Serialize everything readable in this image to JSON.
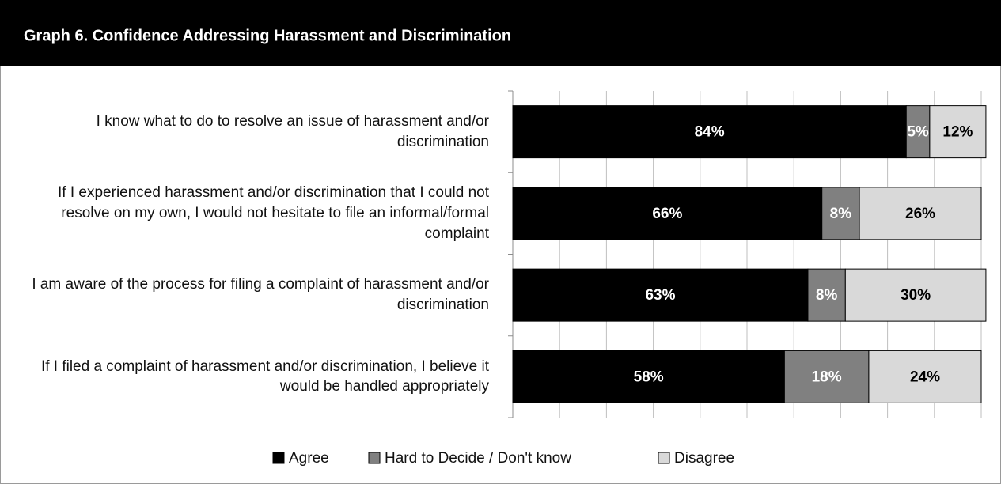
{
  "chart_data": {
    "type": "stacked-bar-horizontal",
    "title": "Graph 6. Confidence Addressing Harassment and Discrimination",
    "categories": [
      "I know what to do to resolve an issue of harassment and/or discrimination",
      "If I experienced harassment and/or discrimination that I could not resolve on my own, I would not hesitate to file an informal/formal complaint",
      "I am aware of the process for filing a complaint of harassment and/or discrimination",
      "If I filed a complaint of harassment and/or discrimination, I believe it would be handled appropriately"
    ],
    "series": [
      {
        "name": "Agree",
        "color": "#000000",
        "label_color": "#ffffff",
        "values": [
          84,
          66,
          63,
          58
        ],
        "value_labels": [
          "84%",
          "66%",
          "63%",
          "58%"
        ]
      },
      {
        "name": "Hard to Decide / Don't know",
        "color": "#808080",
        "label_color": "#ffffff",
        "values": [
          5,
          8,
          8,
          18
        ],
        "value_labels": [
          "5%",
          "8%",
          "8%",
          "18%"
        ]
      },
      {
        "name": "Disagree",
        "color": "#d9d9d9",
        "label_color": "#000000",
        "values": [
          12,
          26,
          30,
          24
        ],
        "value_labels": [
          "12%",
          "26%",
          "30%",
          "24%"
        ]
      }
    ],
    "xlim": [
      0,
      100
    ],
    "xticks": [
      0,
      10,
      20,
      30,
      40,
      50,
      60,
      70,
      80,
      90,
      100
    ],
    "grid": true,
    "legend": "bottom"
  }
}
